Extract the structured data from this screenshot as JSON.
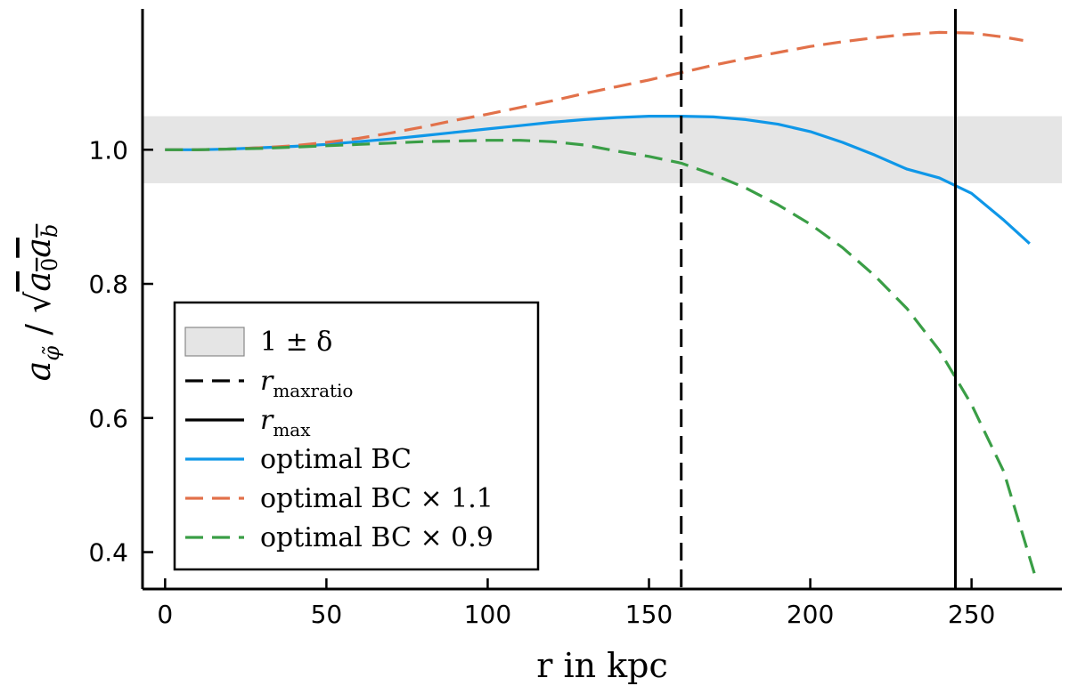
{
  "chart_data": {
    "type": "line",
    "xlabel": "r in kpc",
    "ylabel": "a_φ̃ / √(a₀ a_b)",
    "xlim": [
      -7,
      278
    ],
    "ylim": [
      0.345,
      1.21
    ],
    "xticks": [
      0,
      50,
      100,
      150,
      200,
      250
    ],
    "yticks": [
      0.4,
      0.6,
      0.8,
      1.0
    ],
    "xtick_labels": [
      "0",
      "50",
      "100",
      "150",
      "200",
      "250"
    ],
    "ytick_labels": [
      "0.4",
      "0.6",
      "0.8",
      "1.0"
    ],
    "grid": false,
    "legend_position": "bottom-left",
    "band": {
      "name": "1 ± δ",
      "y_low": 0.95,
      "y_high": 1.05,
      "color": "#e5e5e5"
    },
    "vlines": [
      {
        "name": "r_maxratio",
        "x": 160,
        "style": "dashed",
        "color": "#000000"
      },
      {
        "name": "r_max",
        "x": 245,
        "style": "solid",
        "color": "#000000"
      }
    ],
    "series": [
      {
        "name": "optimal BC",
        "color": "#0f97e8",
        "style": "solid",
        "x": [
          0,
          10,
          20,
          30,
          40,
          50,
          60,
          70,
          80,
          90,
          100,
          110,
          120,
          130,
          140,
          150,
          160,
          170,
          180,
          190,
          200,
          210,
          220,
          230,
          240,
          250,
          260,
          268
        ],
        "y": [
          1.0,
          1.0,
          1.001,
          1.003,
          1.005,
          1.008,
          1.012,
          1.016,
          1.021,
          1.026,
          1.031,
          1.036,
          1.041,
          1.045,
          1.048,
          1.05,
          1.05,
          1.049,
          1.045,
          1.038,
          1.027,
          1.011,
          0.992,
          0.971,
          0.958,
          0.935,
          0.895,
          0.86
        ]
      },
      {
        "name": "optimal BC × 1.1",
        "color": "#e2714a",
        "style": "dashed",
        "x": [
          0,
          10,
          20,
          30,
          40,
          50,
          60,
          70,
          80,
          90,
          100,
          110,
          120,
          130,
          140,
          150,
          160,
          170,
          180,
          190,
          200,
          210,
          220,
          230,
          240,
          250,
          260,
          266
        ],
        "y": [
          1.0,
          1.0,
          1.001,
          1.003,
          1.006,
          1.011,
          1.017,
          1.025,
          1.034,
          1.044,
          1.053,
          1.063,
          1.073,
          1.084,
          1.094,
          1.104,
          1.115,
          1.126,
          1.136,
          1.145,
          1.154,
          1.161,
          1.167,
          1.172,
          1.175,
          1.174,
          1.168,
          1.163
        ]
      },
      {
        "name": "optimal BC × 0.9",
        "color": "#3a9e46",
        "style": "dashed",
        "x": [
          0,
          10,
          20,
          30,
          40,
          50,
          60,
          70,
          80,
          90,
          100,
          110,
          120,
          130,
          140,
          150,
          160,
          170,
          180,
          190,
          200,
          210,
          220,
          230,
          240,
          250,
          260,
          270
        ],
        "y": [
          1.0,
          1.0,
          1.001,
          1.002,
          1.004,
          1.006,
          1.008,
          1.01,
          1.012,
          1.013,
          1.014,
          1.014,
          1.012,
          1.007,
          0.998,
          0.99,
          0.98,
          0.963,
          0.943,
          0.918,
          0.889,
          0.854,
          0.812,
          0.763,
          0.701,
          0.62,
          0.52,
          0.36
        ]
      }
    ]
  }
}
